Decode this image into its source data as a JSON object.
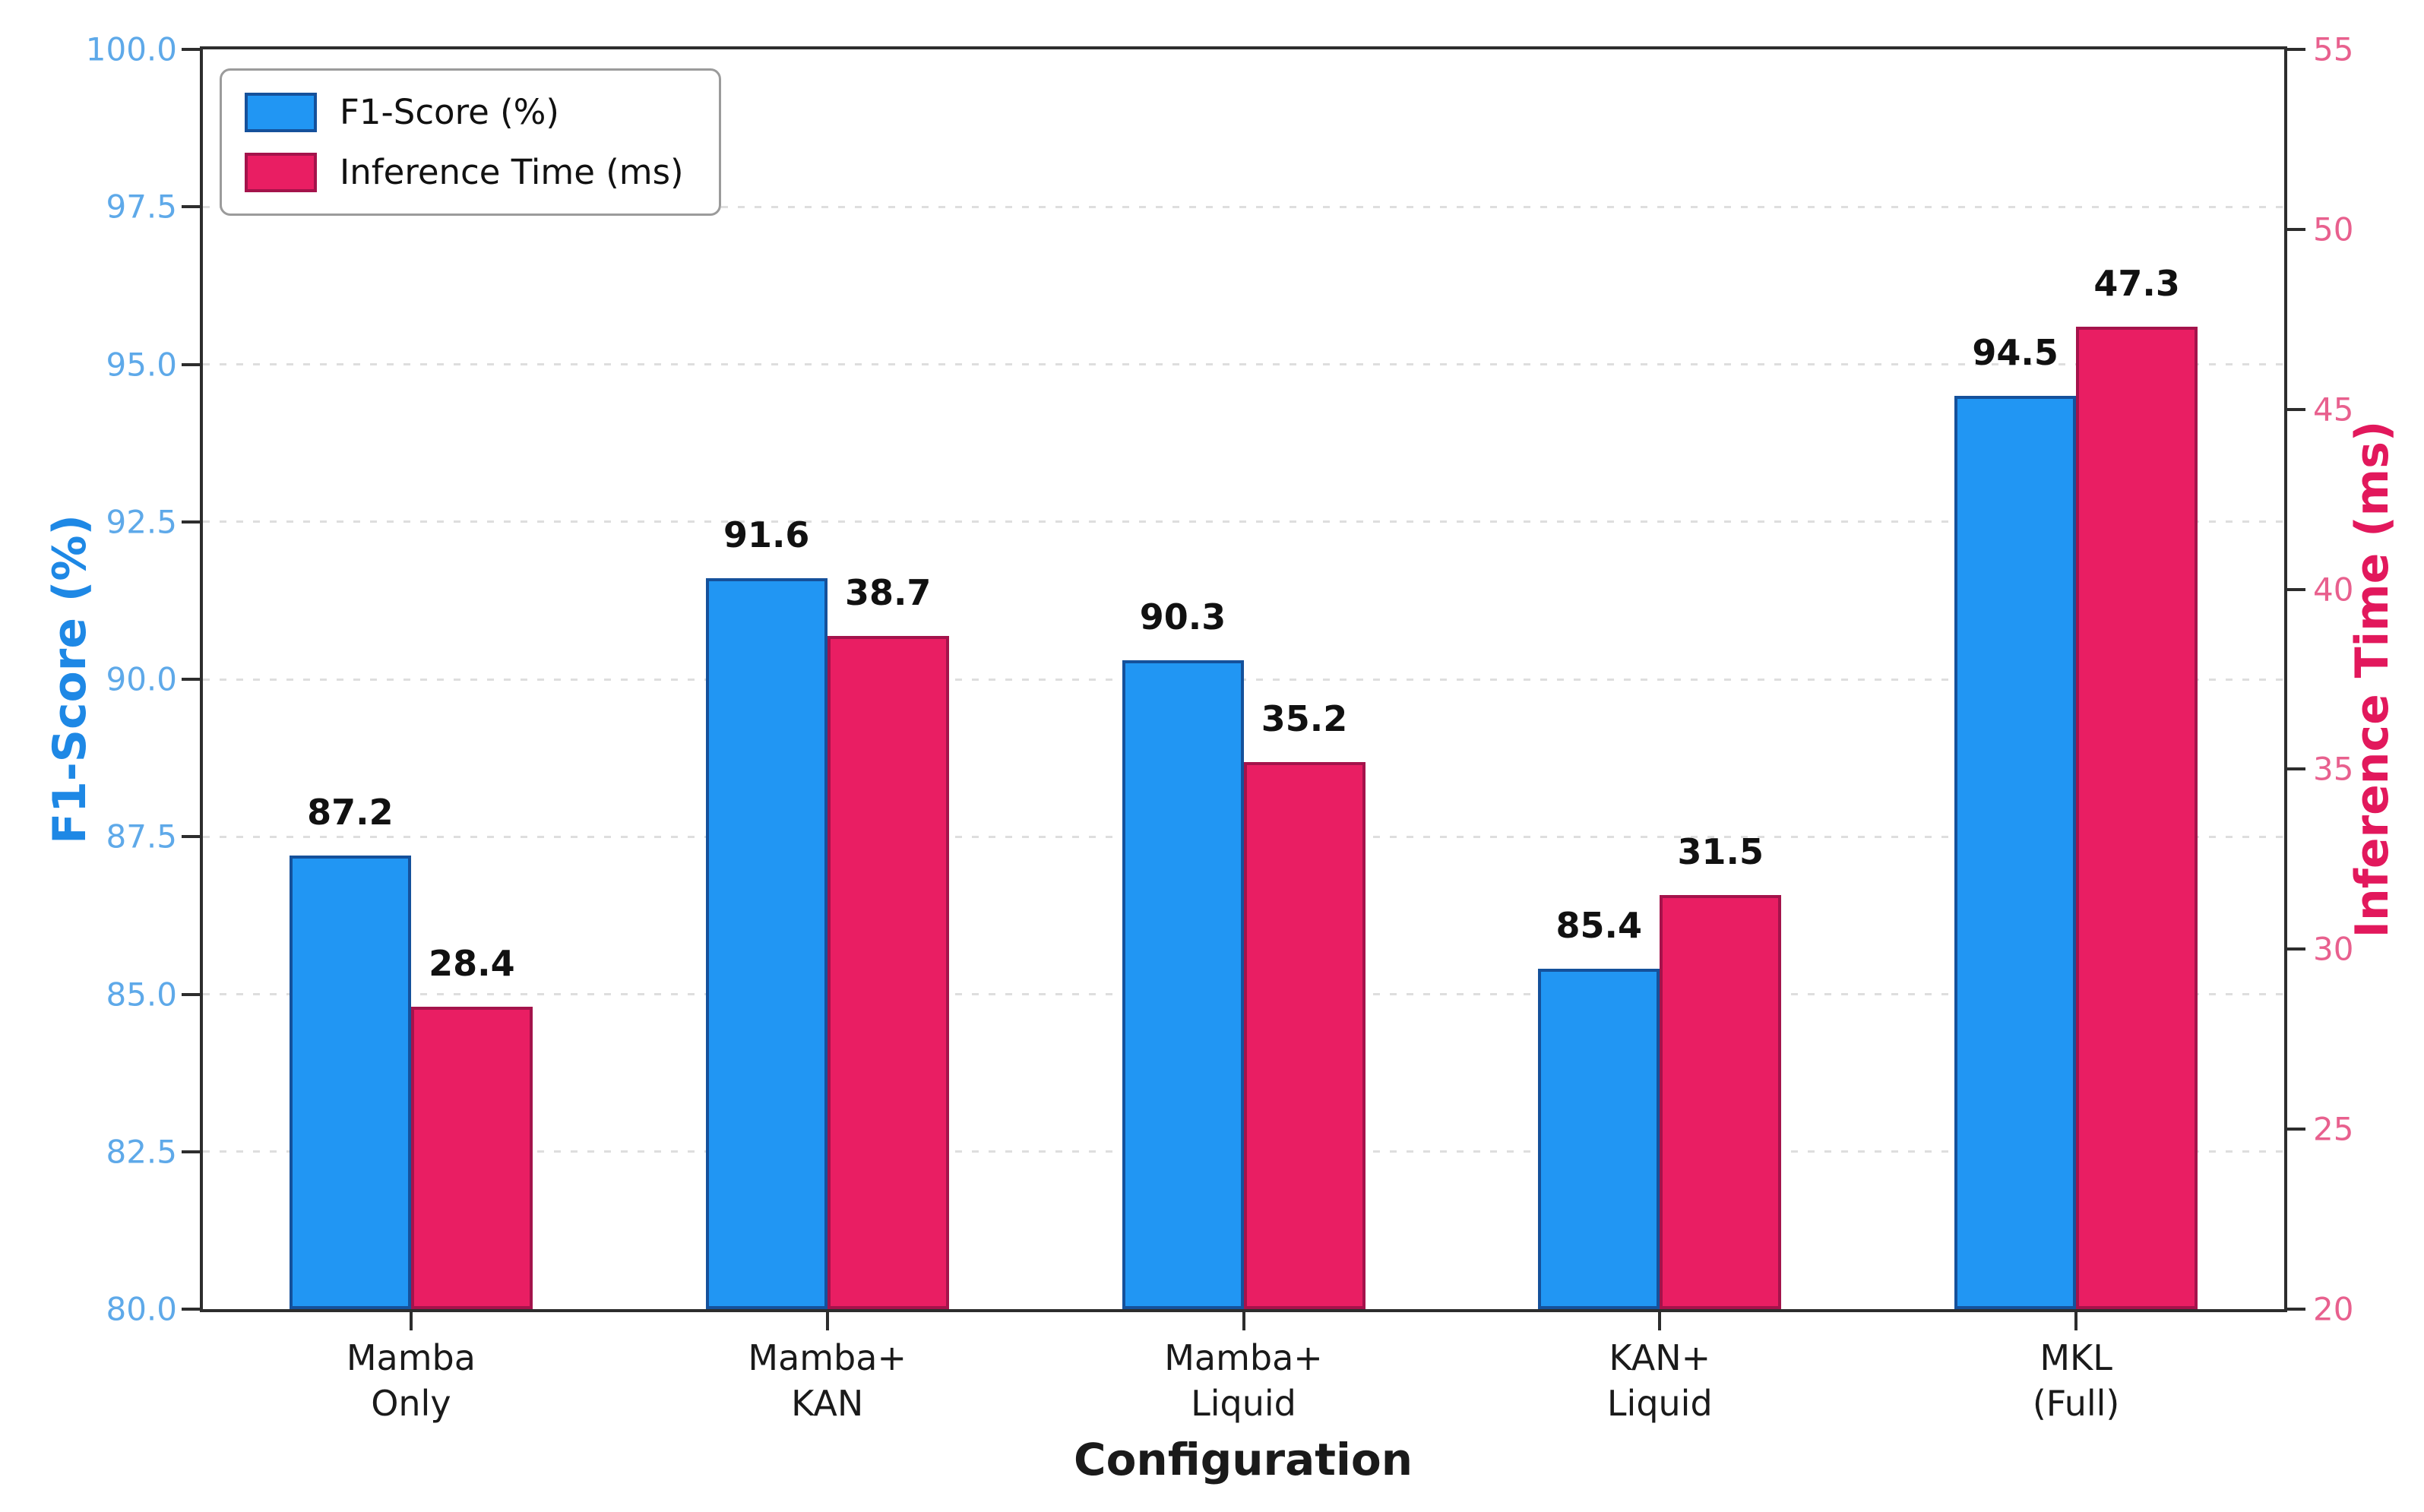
{
  "chart_data": {
    "type": "bar",
    "title": "",
    "xlabel": "Configuration",
    "categories": [
      [
        "Mamba",
        "Only"
      ],
      [
        "Mamba+",
        "KAN"
      ],
      [
        "Mamba+",
        "Liquid"
      ],
      [
        "KAN+",
        "Liquid"
      ],
      [
        "MKL",
        "(Full)"
      ]
    ],
    "series": [
      {
        "name": "F1-Score (%)",
        "axis": "left",
        "values": [
          87.2,
          91.6,
          90.3,
          85.4,
          94.5
        ],
        "value_labels": [
          "87.2",
          "91.6",
          "90.3",
          "85.4",
          "94.5"
        ],
        "fill": "#2196F3",
        "edge": "#15519B"
      },
      {
        "name": "Inference Time (ms)",
        "axis": "right",
        "values": [
          28.4,
          38.7,
          35.2,
          31.5,
          47.3
        ],
        "value_labels": [
          "28.4",
          "38.7",
          "35.2",
          "31.5",
          "47.3"
        ],
        "fill": "#E91E63",
        "edge": "#A4134B"
      }
    ],
    "left_axis": {
      "label": "F1-Score (%)",
      "min": 80,
      "max": 100,
      "ticks": [
        "80.0",
        "82.5",
        "85.0",
        "87.5",
        "90.0",
        "92.5",
        "95.0",
        "97.5",
        "100.0"
      ],
      "label_color": "#1E88E5",
      "tick_color": "#5EA9E9"
    },
    "right_axis": {
      "label": "Inference Time (ms)",
      "min": 20,
      "max": 55,
      "ticks": [
        "20",
        "25",
        "30",
        "35",
        "40",
        "45",
        "50",
        "55"
      ],
      "label_color": "#E2185C",
      "tick_color": "#E8608E"
    },
    "grid": {
      "axis": "y",
      "style": "dotted",
      "source": "left_axis"
    },
    "legend_position": "upper left",
    "bar_value_labels": true
  }
}
